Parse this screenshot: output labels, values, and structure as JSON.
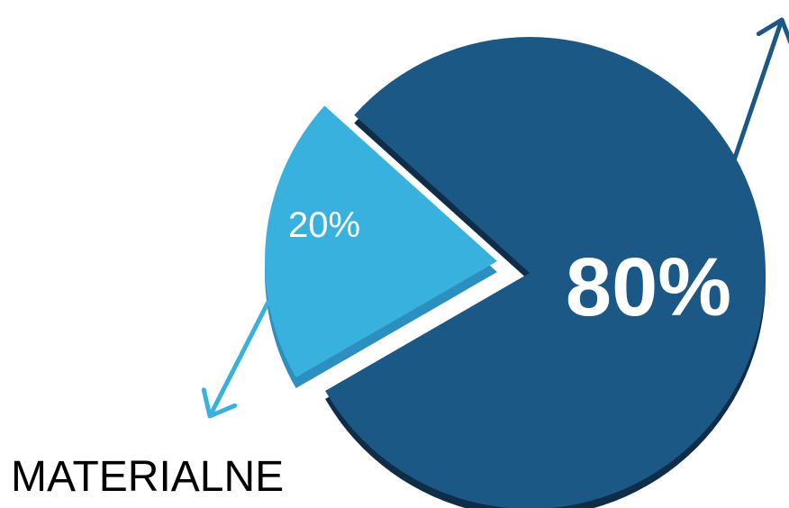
{
  "chart_data": {
    "type": "pie",
    "slices": [
      {
        "label": "80%",
        "value": 80,
        "color": "#1b5886",
        "shade": "#0f2d48"
      },
      {
        "label": "20%",
        "value": 20,
        "color": "#39b1de",
        "shade": "#2b8fc0"
      }
    ],
    "annotations": [
      "MATERIALNE"
    ],
    "legend": "none"
  }
}
